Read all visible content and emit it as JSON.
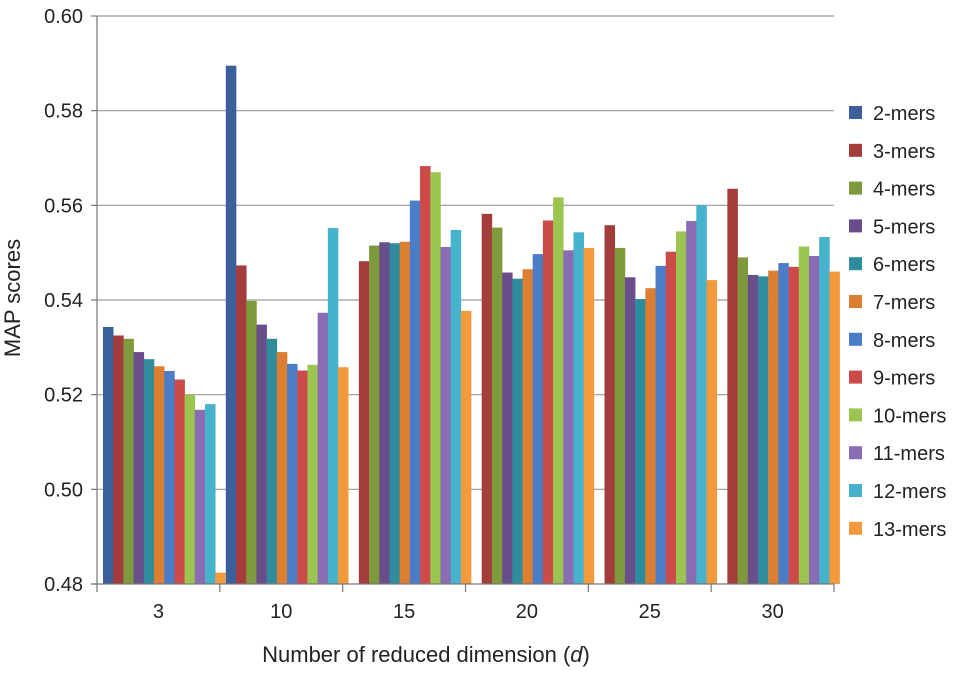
{
  "chart_data": {
    "type": "bar",
    "xlabel": "Number of reduced dimension (d)",
    "xlabel_parts": {
      "prefix": "Number of reduced dimension (",
      "var": "d",
      "suffix": ")"
    },
    "ylabel": "MAP scores",
    "ylim": [
      0.48,
      0.6
    ],
    "yticks": [
      "0.48",
      "0.50",
      "0.52",
      "0.54",
      "0.56",
      "0.58",
      "0.60"
    ],
    "grid": true,
    "legend_position": "right",
    "categories": [
      "3",
      "10",
      "15",
      "20",
      "25",
      "30"
    ],
    "series": [
      {
        "name": "2-mers",
        "color": "#3a5f9a",
        "values": [
          0.5343,
          0.5895,
          null,
          null,
          null,
          null
        ]
      },
      {
        "name": "3-mers",
        "color": "#a33c3a",
        "values": [
          0.5325,
          0.5473,
          0.5482,
          0.5582,
          0.5558,
          0.5635
        ]
      },
      {
        "name": "4-mers",
        "color": "#7f9a3c",
        "values": [
          0.5318,
          0.5398,
          0.5515,
          0.5553,
          0.551,
          0.549
        ]
      },
      {
        "name": "5-mers",
        "color": "#6a4e8c",
        "values": [
          0.529,
          0.5348,
          0.5522,
          0.5458,
          0.5448,
          0.5453
        ]
      },
      {
        "name": "6-mers",
        "color": "#2e8c9c",
        "values": [
          0.5275,
          0.5318,
          0.552,
          0.5445,
          0.5402,
          0.545
        ]
      },
      {
        "name": "7-mers",
        "color": "#dc7f33",
        "values": [
          0.526,
          0.529,
          0.5523,
          0.5465,
          0.5425,
          0.5462
        ]
      },
      {
        "name": "8-mers",
        "color": "#4a7cc8",
        "values": [
          0.525,
          0.5265,
          0.561,
          0.5497,
          0.5472,
          0.5478
        ]
      },
      {
        "name": "9-mers",
        "color": "#cc4a48",
        "values": [
          0.5232,
          0.5251,
          0.5683,
          0.5568,
          0.5502,
          0.547
        ]
      },
      {
        "name": "10-mers",
        "color": "#9cc450",
        "values": [
          0.52,
          0.5263,
          0.567,
          0.5617,
          0.5545,
          0.5513
        ]
      },
      {
        "name": "11-mers",
        "color": "#8a6cb4",
        "values": [
          0.5168,
          0.5373,
          0.5512,
          0.5505,
          0.5567,
          0.5493
        ]
      },
      {
        "name": "12-mers",
        "color": "#47b2cc",
        "values": [
          0.518,
          0.5552,
          0.5548,
          0.5543,
          0.56,
          0.5533
        ]
      },
      {
        "name": "13-mers",
        "color": "#f39a3c",
        "values": [
          0.4824,
          0.5258,
          0.5377,
          0.551,
          0.5442,
          0.546
        ]
      }
    ]
  }
}
